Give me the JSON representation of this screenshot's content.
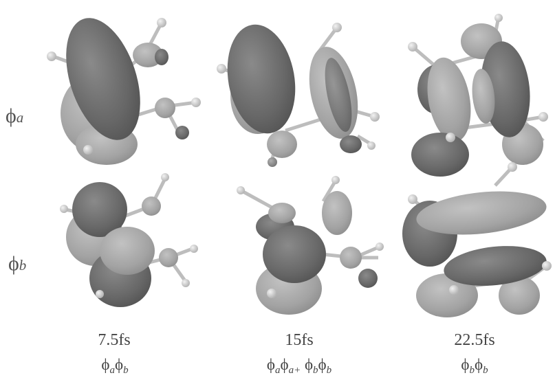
{
  "rows": [
    {
      "symbol": "ϕ",
      "subscript": "a"
    },
    {
      "symbol": "ϕ",
      "subscript": "b"
    }
  ],
  "columns": [
    {
      "time": "7.5fs",
      "formula": [
        {
          "sym": "ϕ",
          "sub": "a"
        },
        {
          "sym": "ϕ",
          "sub": "b"
        }
      ]
    },
    {
      "time": "15fs",
      "formula": [
        {
          "sym": "ϕ",
          "sub": "a"
        },
        {
          "sym": "ϕ",
          "sub": "a+"
        },
        {
          "sym": " ϕ",
          "sub": "b"
        },
        {
          "sym": "ϕ",
          "sub": "b"
        }
      ]
    },
    {
      "time": "22.5fs",
      "formula": [
        {
          "sym": "ϕ",
          "sub": "b"
        },
        {
          "sym": "ϕ",
          "sub": "b"
        }
      ]
    }
  ],
  "colors": {
    "lobe_dark": "#6f6f6f",
    "lobe_light": "#a9a9a9",
    "atom": "#8d8d8d",
    "hydrogen": "#d6d6d6",
    "bond": "#bdbdbd"
  }
}
